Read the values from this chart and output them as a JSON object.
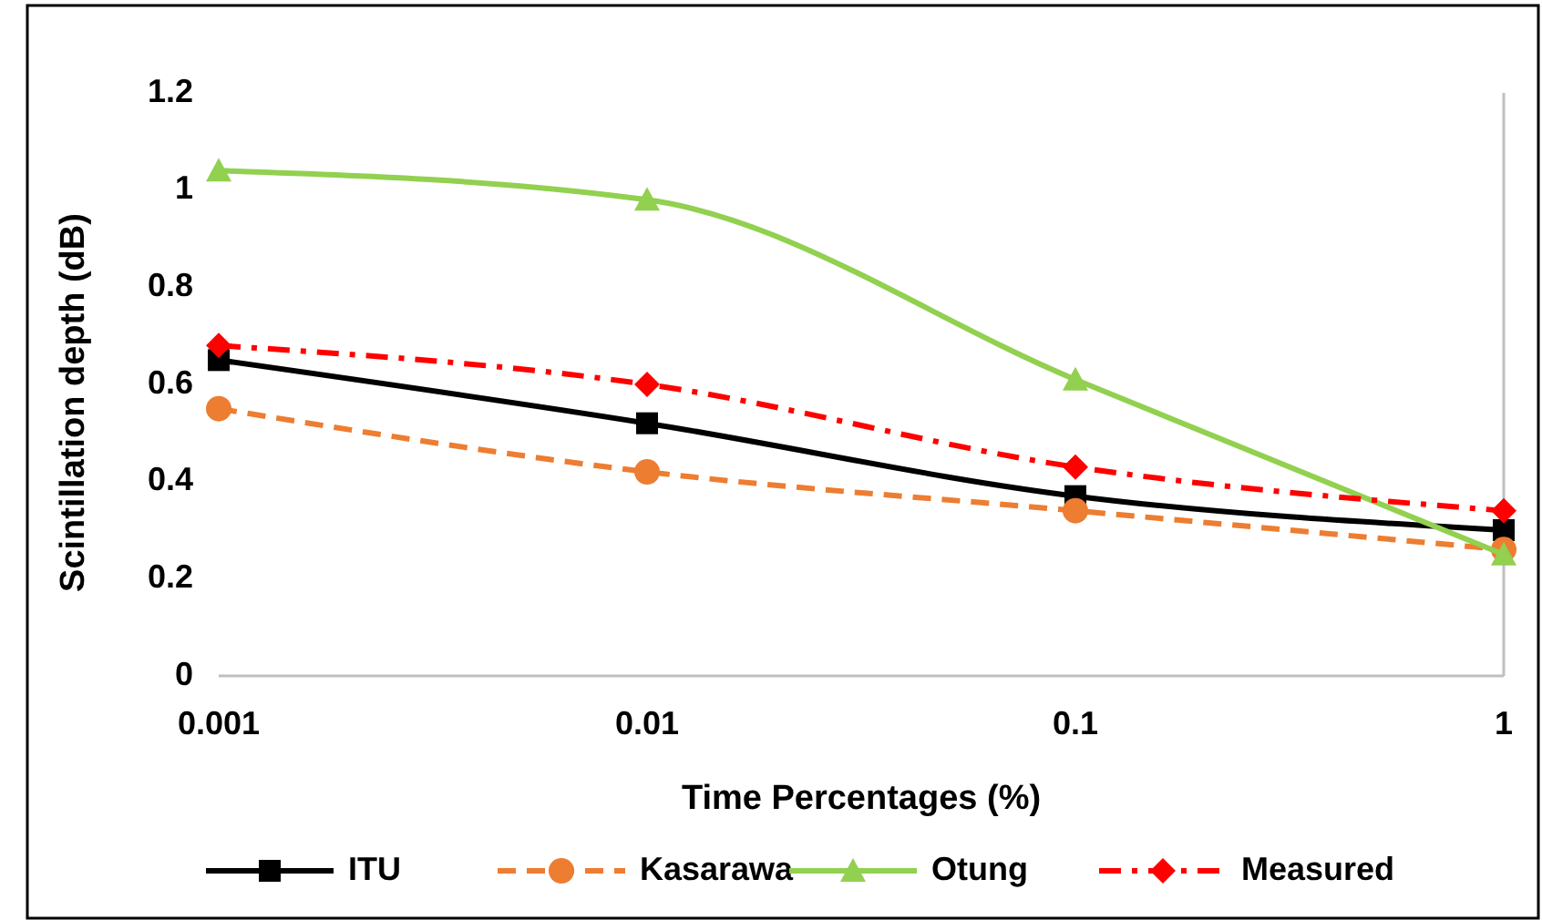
{
  "chart_data": {
    "type": "line",
    "xlabel": "Time Percentages (%)",
    "ylabel": "Scintillation depth (dB)",
    "x": [
      0.001,
      0.01,
      0.1,
      1
    ],
    "log": "x",
    "xlim": [
      0.001,
      1
    ],
    "xticks": [
      0.001,
      0.01,
      0.1,
      1
    ],
    "ylim": [
      0,
      1.2
    ],
    "yticks": [
      0,
      0.2,
      0.4,
      0.6,
      0.8,
      1,
      1.2
    ],
    "grid": false,
    "legend": "bottom",
    "series": [
      {
        "name": "ITU",
        "color": "#000000",
        "values": [
          0.65,
          0.52,
          0.37,
          0.3
        ],
        "marker": "square",
        "line_style": "solid"
      },
      {
        "name": "Kasarawa",
        "color": "#ed7d31",
        "values": [
          0.55,
          0.42,
          0.34,
          0.26
        ],
        "marker": "circle",
        "line_style": "dashed"
      },
      {
        "name": "Otung",
        "color": "#92d050",
        "values": [
          1.04,
          0.98,
          0.61,
          0.25
        ],
        "marker": "triangle",
        "line_style": "solid"
      },
      {
        "name": "Measured",
        "color": "#ff0000",
        "values": [
          0.68,
          0.6,
          0.43,
          0.34
        ],
        "marker": "diamond",
        "line_style": "dashdot"
      }
    ]
  }
}
